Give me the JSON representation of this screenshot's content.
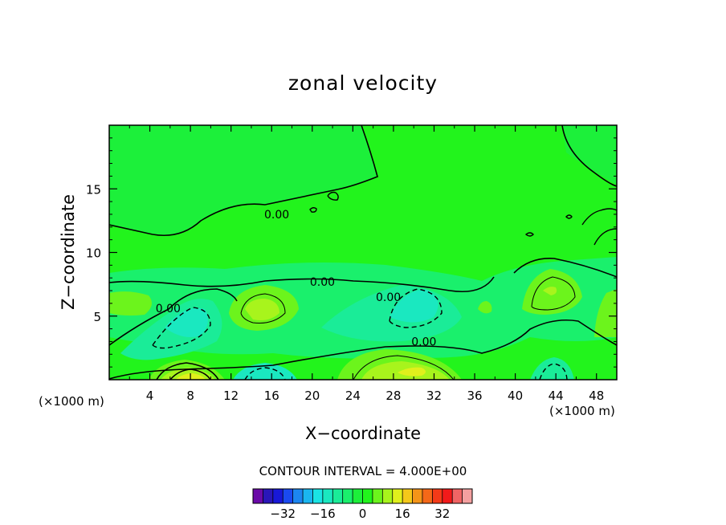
{
  "chart_data": {
    "type": "heatmap",
    "title": "zonal velocity",
    "xlabel": "X−coordinate",
    "ylabel": "Z−coordinate",
    "x_unit": "(×1000 m)",
    "z_unit": "(×1000 m)",
    "xlim": [
      0,
      50
    ],
    "ylim": [
      0,
      20
    ],
    "x_ticks": [
      "4",
      "8",
      "12",
      "16",
      "20",
      "24",
      "28",
      "32",
      "36",
      "40",
      "44",
      "48"
    ],
    "x_tick_values": [
      4,
      8,
      12,
      16,
      20,
      24,
      28,
      32,
      36,
      40,
      44,
      48
    ],
    "y_ticks": [
      "5",
      "10",
      "15"
    ],
    "y_tick_values": [
      5,
      10,
      15
    ],
    "contour_interval_text": "CONTOUR INTERVAL = 4.000E+00",
    "contour_interval": 4,
    "contour_labels": [
      {
        "text": "0.00",
        "x": 16.5,
        "z": 13.0
      },
      {
        "text": "0.00",
        "x": 21.0,
        "z": 7.7
      },
      {
        "text": "0.00",
        "x": 5.8,
        "z": 5.6
      },
      {
        "text": "0.00",
        "x": 27.5,
        "z": 6.5
      },
      {
        "text": "0.00",
        "x": 31.0,
        "z": 3.0
      }
    ],
    "colorbar": {
      "ticks": [
        "−32",
        "−16",
        "0",
        "16",
        "32"
      ],
      "tick_values": [
        -32,
        -16,
        0,
        16,
        32
      ],
      "levels": [
        -40,
        -36,
        -32,
        -28,
        -24,
        -20,
        -16,
        -12,
        -8,
        -4,
        0,
        4,
        8,
        12,
        16,
        20,
        24,
        28,
        32,
        36,
        40
      ],
      "colors": [
        "#6a0aa8",
        "#2a16b8",
        "#1818d8",
        "#1a4af0",
        "#1c86f0",
        "#1ab6f0",
        "#1ae4e4",
        "#1ae8c0",
        "#1aec98",
        "#1af06c",
        "#1cf03a",
        "#22f41c",
        "#6cf41c",
        "#a8f41c",
        "#e0f01c",
        "#f4c81a",
        "#f49418",
        "#f46818",
        "#f43a18",
        "#f21a1a",
        "#f06464",
        "#f4a0a0"
      ]
    },
    "regions": [
      {
        "type": "min",
        "x": 8.5,
        "z": 4.8,
        "value": -8
      },
      {
        "type": "min",
        "x": 29.5,
        "z": 5.0,
        "value": -8
      },
      {
        "type": "min",
        "x": 14.0,
        "z": 0.6,
        "value": -12
      },
      {
        "type": "min",
        "x": 43.5,
        "z": 1.0,
        "value": -8
      },
      {
        "type": "max",
        "x": 15.0,
        "z": 5.5,
        "value": 12
      },
      {
        "type": "max",
        "x": 8.0,
        "z": 0.5,
        "value": 16
      },
      {
        "type": "max",
        "x": 30.0,
        "z": 0.8,
        "value": 12
      },
      {
        "type": "max",
        "x": 43.5,
        "z": 6.5,
        "value": 8
      },
      {
        "type": "max",
        "x": 49.0,
        "z": 5.0,
        "value": 8
      }
    ]
  },
  "colors": {
    "background": "#22f41c",
    "zero_fill": "#1cf03a",
    "neg_light": "#1af06c",
    "neg_mid": "#1aec98",
    "neg_strong": "#1ae8c0",
    "pos_light": "#6cf41c",
    "pos_mid": "#a8f41c",
    "pos_strong": "#e0f01c"
  }
}
